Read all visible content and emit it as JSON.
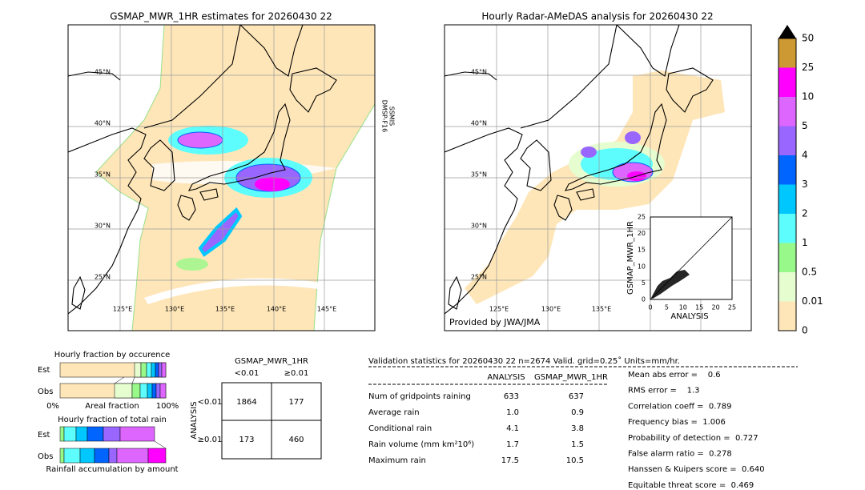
{
  "left_map": {
    "title": "GSMAP_MWR_1HR estimates for 20260430 22",
    "lat_labels": [
      "45°N",
      "40°N",
      "35°N",
      "30°N",
      "25°N"
    ],
    "lon_labels": [
      "125°E",
      "130°E",
      "135°E",
      "140°E",
      "145°E"
    ],
    "sensor": [
      "DMSP-F16",
      "SSMIS"
    ]
  },
  "right_map": {
    "title": "Hourly Radar-AMeDAS analysis for 20260430 22",
    "lat_labels": [
      "45°N",
      "40°N",
      "35°N",
      "30°N",
      "25°N"
    ],
    "lon_labels": [
      "125°E",
      "130°E",
      "135°E"
    ],
    "credit": "Provided by JWA/JMA"
  },
  "scatter": {
    "x_label": "ANALYSIS",
    "y_label": "GSMAP_MWR_1HR",
    "ticks": [
      "0",
      "5",
      "10",
      "15",
      "20",
      "25"
    ]
  },
  "colorbar": {
    "labels": [
      "0",
      "0.01",
      "0.5",
      "1",
      "2",
      "3",
      "4",
      "5",
      "10",
      "25",
      "50"
    ]
  },
  "fraction_occurrence": {
    "title": "Hourly fraction by occurence",
    "rows": [
      "Est",
      "Obs"
    ],
    "axis": [
      "0%",
      "Areal fraction",
      "100%"
    ]
  },
  "fraction_total": {
    "title": "Hourly fraction of total rain",
    "rows": [
      "Est",
      "Obs"
    ],
    "footer": "Rainfall accumulation by amount"
  },
  "contingency": {
    "title": "GSMAP_MWR_1HR",
    "cols": [
      "<0.01",
      "≥0.01"
    ],
    "row_title": "ANALYSIS",
    "rows": [
      "<0.01",
      "≥0.01"
    ],
    "cells": [
      [
        "1864",
        "177"
      ],
      [
        "173",
        "460"
      ]
    ]
  },
  "validation": {
    "header": "Validation statistics for 20260430 22  n=2674 Valid. grid=0.25˚ Units=mm/hr.",
    "columns": [
      "ANALYSIS",
      "GSMAP_MWR_1HR"
    ],
    "rows": [
      [
        "Num of gridpoints raining",
        "633",
        "637"
      ],
      [
        "Average rain",
        "1.0",
        "0.9"
      ],
      [
        "Conditional rain",
        "4.1",
        "3.8"
      ],
      [
        "Rain volume (mm km²10⁶)",
        "1.7",
        "1.5"
      ],
      [
        "Maximum rain",
        "17.5",
        "10.5"
      ]
    ],
    "scores": [
      "Mean abs error =    0.6",
      "RMS error =    1.3",
      "Correlation coeff =  0.789",
      "Frequency bias =  1.006",
      "Probability of detection =  0.727",
      "False alarm ratio =  0.278",
      "Hanssen & Kuipers score =  0.640",
      "Equitable threat score =  0.469"
    ]
  }
}
